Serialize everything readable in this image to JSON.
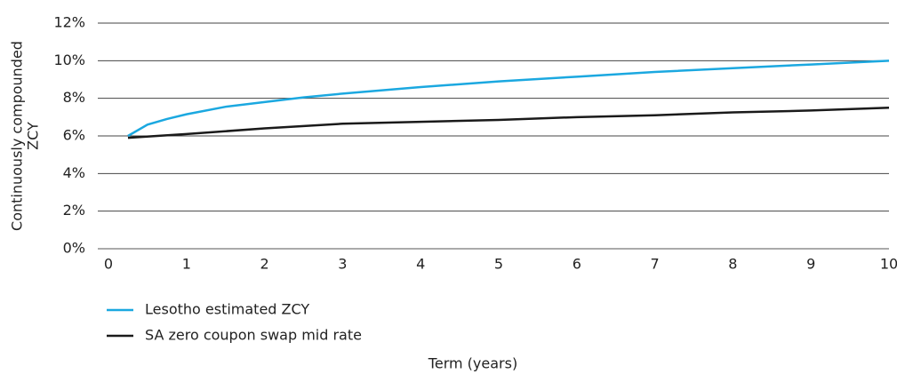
{
  "chart_data": {
    "type": "line",
    "ylabel": [
      "Continuously compounded",
      "ZCY"
    ],
    "xlabel": "Term (years)",
    "xlim": [
      0,
      10
    ],
    "xticks": [
      0,
      1,
      2,
      3,
      4,
      5,
      6,
      7,
      8,
      9,
      10
    ],
    "ylim": [
      0,
      12
    ],
    "yticks": [
      {
        "value": 0,
        "label": "0%"
      },
      {
        "value": 2,
        "label": "2%"
      },
      {
        "value": 4,
        "label": "4%"
      },
      {
        "value": 6,
        "label": "6%"
      },
      {
        "value": 8,
        "label": "8%"
      },
      {
        "value": 10,
        "label": "10%"
      },
      {
        "value": 12,
        "label": "12%"
      }
    ],
    "grid": true,
    "legend": "bottom-left",
    "series": [
      {
        "name": "Lesotho estimated ZCY",
        "color": "#1ba8e0",
        "x": [
          0.25,
          0.5,
          0.75,
          1,
          1.5,
          2,
          2.5,
          3,
          4,
          5,
          6,
          7,
          8,
          9,
          10
        ],
        "values": [
          6.0,
          6.6,
          6.9,
          7.15,
          7.55,
          7.8,
          8.05,
          8.25,
          8.6,
          8.9,
          9.15,
          9.4,
          9.6,
          9.8,
          10.0
        ]
      },
      {
        "name": "SA zero coupon swap mid rate",
        "color": "#1a1a1a",
        "x": [
          0.25,
          1,
          2,
          3,
          4,
          5,
          6,
          7,
          8,
          9,
          10
        ],
        "values": [
          5.9,
          6.1,
          6.4,
          6.65,
          6.75,
          6.85,
          7.0,
          7.1,
          7.25,
          7.35,
          7.5
        ]
      }
    ]
  }
}
